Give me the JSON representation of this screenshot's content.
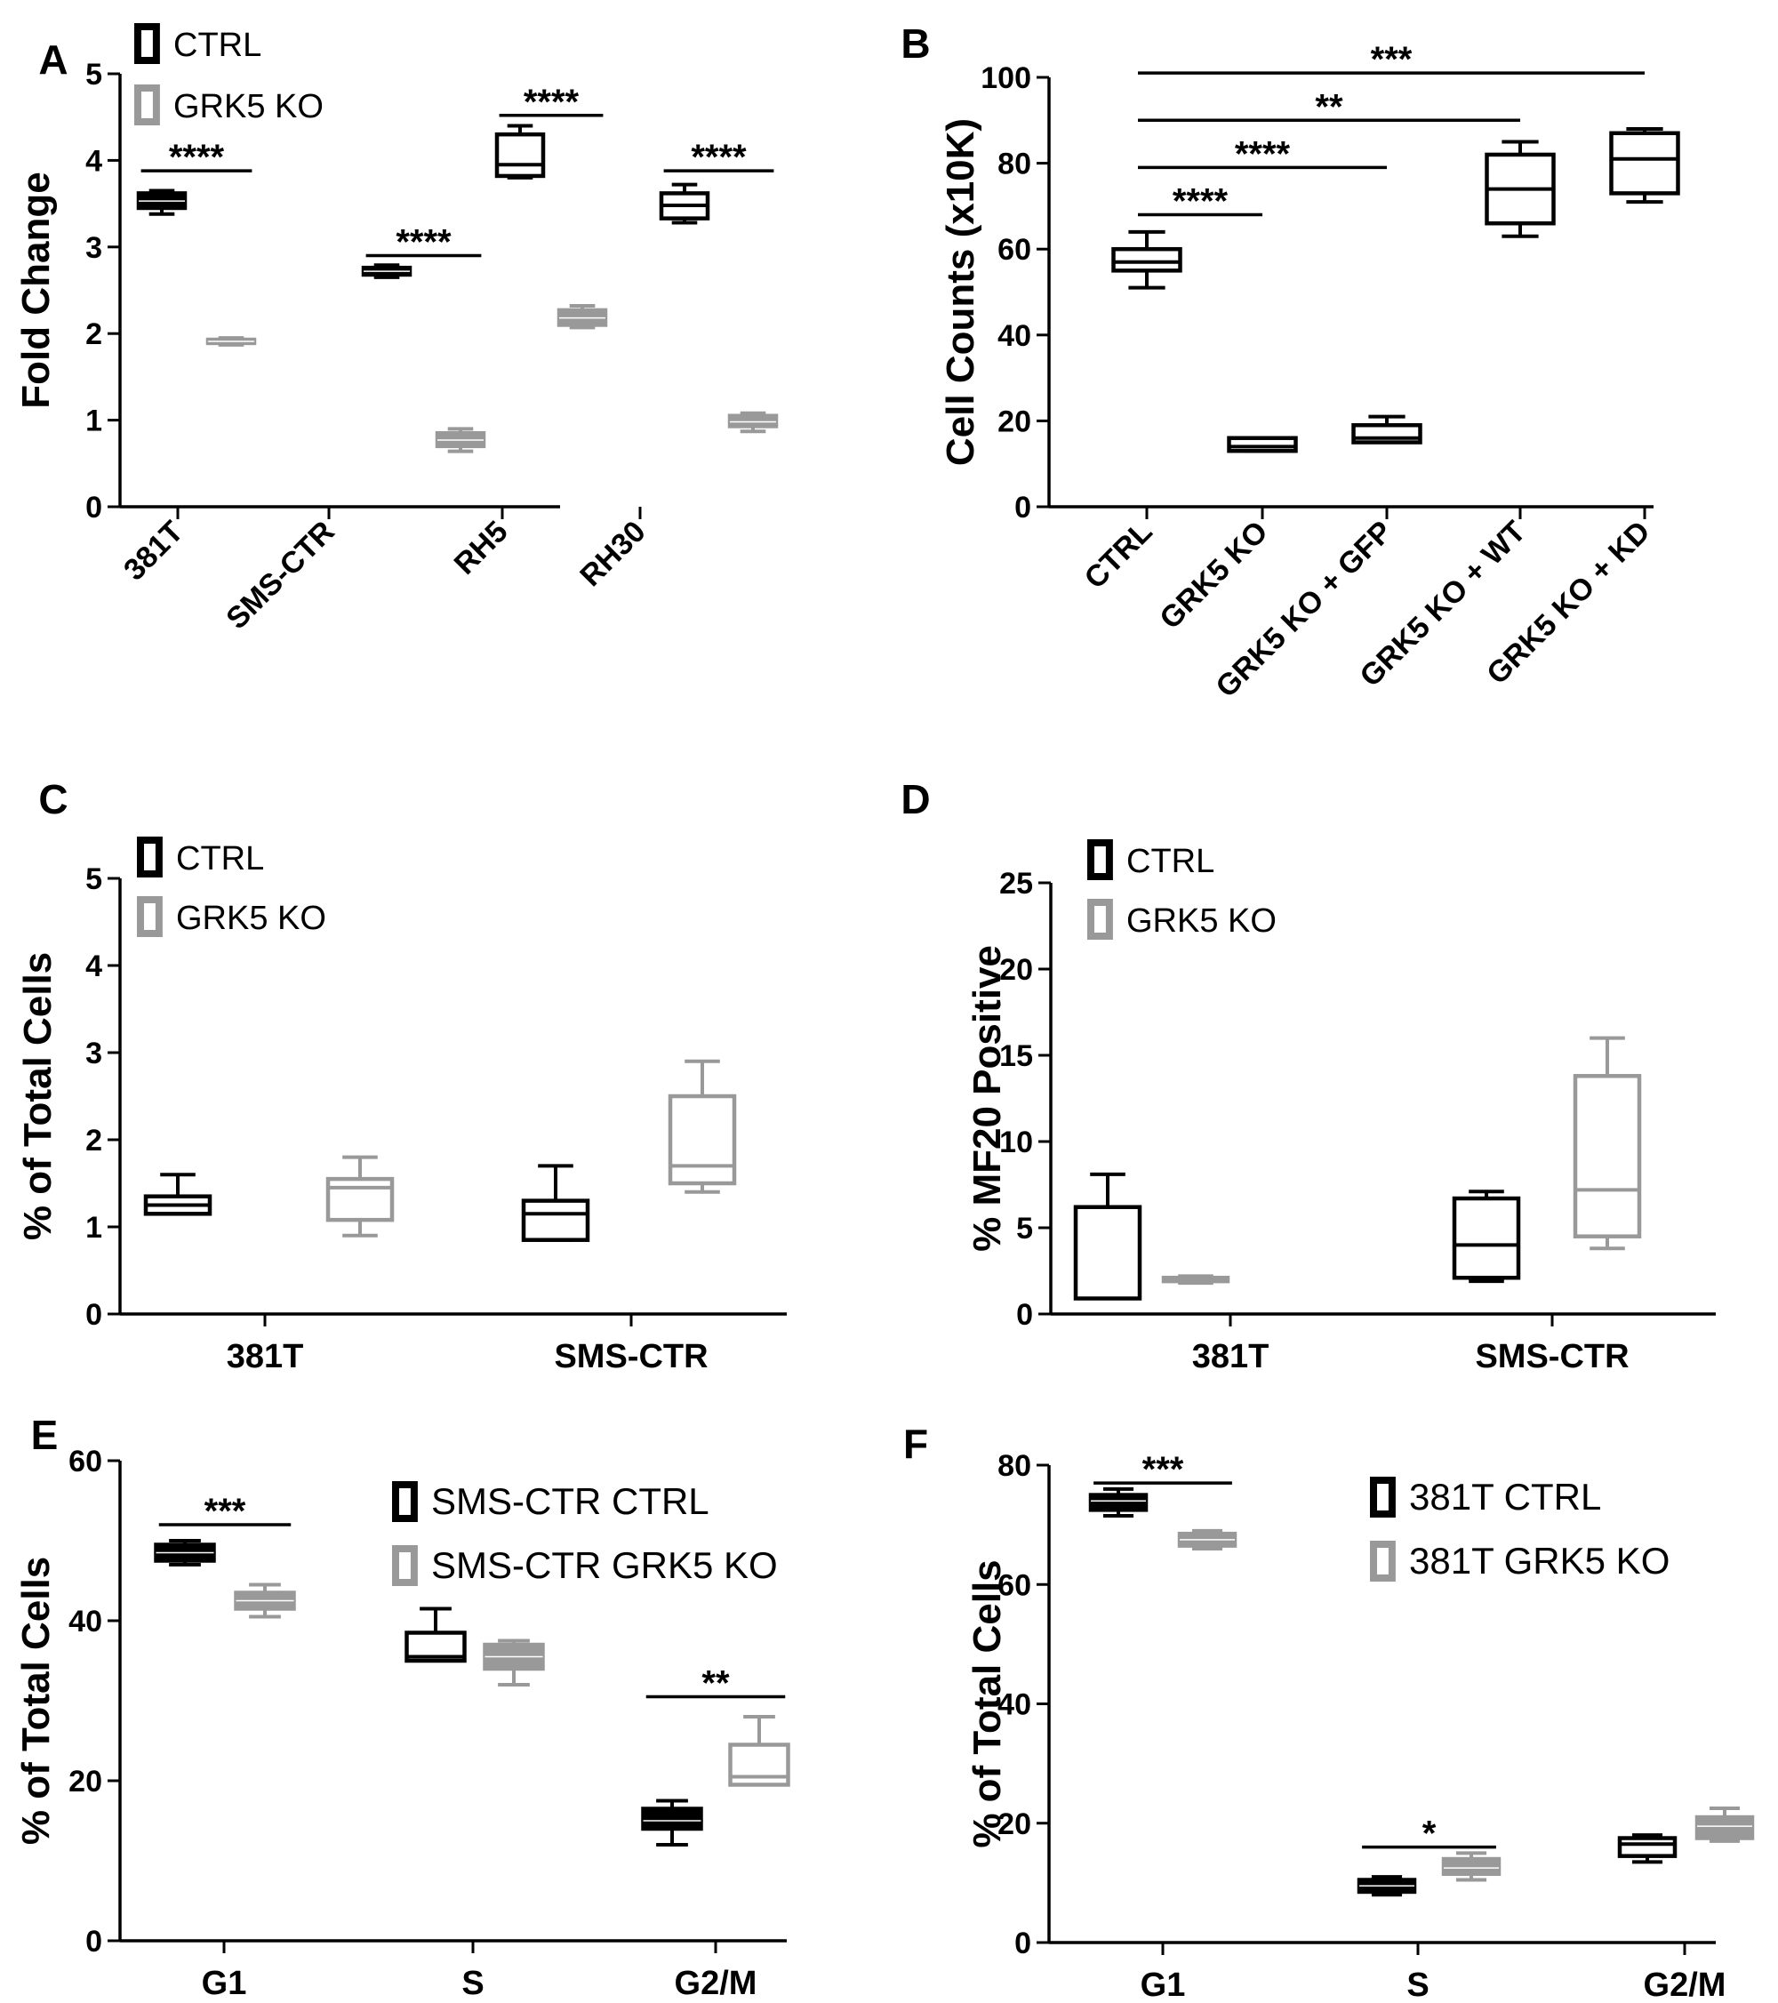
{
  "colors": {
    "ctrl": "#000000",
    "ko": "#999999",
    "axis": "#000000"
  },
  "chart_data": [
    {
      "panel": "A",
      "type": "box",
      "ylabel": "Fold Change",
      "ylim": [
        0,
        5
      ],
      "yticks": [
        0,
        1,
        2,
        3,
        4,
        5
      ],
      "categories": [
        "381T",
        "SMS-CTR",
        "RH5",
        "RH30"
      ],
      "legend": [
        {
          "label": "CTRL",
          "color": "ctrl"
        },
        {
          "label": "GRK5 KO",
          "color": "ko"
        }
      ],
      "boxes": [
        {
          "cat": 0,
          "group": "ctrl",
          "filled": true,
          "min": 3.38,
          "q1": 3.45,
          "median": 3.53,
          "q3": 3.62,
          "max": 3.65
        },
        {
          "cat": 0,
          "group": "ko",
          "filled": true,
          "min": 1.87,
          "q1": 1.89,
          "median": 1.91,
          "q3": 1.93,
          "max": 1.95
        },
        {
          "cat": 1,
          "group": "ctrl",
          "filled": true,
          "min": 2.65,
          "q1": 2.68,
          "median": 2.72,
          "q3": 2.76,
          "max": 2.79
        },
        {
          "cat": 1,
          "group": "ko",
          "filled": true,
          "min": 0.64,
          "q1": 0.7,
          "median": 0.77,
          "q3": 0.85,
          "max": 0.9
        },
        {
          "cat": 2,
          "group": "ctrl",
          "filled": false,
          "min": 3.8,
          "q1": 3.82,
          "median": 3.95,
          "q3": 4.3,
          "max": 4.4
        },
        {
          "cat": 2,
          "group": "ko",
          "filled": true,
          "min": 2.07,
          "q1": 2.1,
          "median": 2.18,
          "q3": 2.27,
          "max": 2.32
        },
        {
          "cat": 3,
          "group": "ctrl",
          "filled": false,
          "min": 3.28,
          "q1": 3.33,
          "median": 3.48,
          "q3": 3.62,
          "max": 3.72
        },
        {
          "cat": 3,
          "group": "ko",
          "filled": true,
          "min": 0.87,
          "q1": 0.93,
          "median": 0.98,
          "q3": 1.05,
          "max": 1.08
        }
      ],
      "significance": [
        {
          "from": 0,
          "to": 1,
          "y": 3.88,
          "label": "****"
        },
        {
          "from": 2,
          "to": 3,
          "y": 2.9,
          "label": "****"
        },
        {
          "from": 4,
          "to": 5,
          "y": 4.52,
          "label": "****"
        },
        {
          "from": 6,
          "to": 7,
          "y": 3.88,
          "label": "****"
        }
      ]
    },
    {
      "panel": "B",
      "type": "box",
      "ylabel": "Cell Counts (x10K)",
      "ylim": [
        0,
        100
      ],
      "yticks": [
        0,
        20,
        40,
        60,
        80,
        100
      ],
      "categories": [
        "CTRL",
        "GRK5 KO",
        "GRK5 KO + GFP",
        "GRK5 KO + WT",
        "GRK5 KO + KD"
      ],
      "legend": [],
      "boxes": [
        {
          "cat": 0,
          "group": "ctrl",
          "filled": false,
          "min": 51,
          "q1": 55,
          "median": 57,
          "q3": 60,
          "max": 64
        },
        {
          "cat": 1,
          "group": "ctrl",
          "filled": false,
          "min": 13,
          "q1": 13,
          "median": 14,
          "q3": 16,
          "max": 16
        },
        {
          "cat": 2,
          "group": "ctrl",
          "filled": false,
          "min": 15,
          "q1": 15,
          "median": 16,
          "q3": 19,
          "max": 21
        },
        {
          "cat": 3,
          "group": "ctrl",
          "filled": false,
          "min": 63,
          "q1": 66,
          "median": 74,
          "q3": 82,
          "max": 85
        },
        {
          "cat": 4,
          "group": "ctrl",
          "filled": false,
          "min": 71,
          "q1": 73,
          "median": 81,
          "q3": 87,
          "max": 88
        }
      ],
      "significance": [
        {
          "from": 0,
          "to": 4,
          "y": 101,
          "label": "***"
        },
        {
          "from": 0,
          "to": 3,
          "y": 90,
          "label": "**"
        },
        {
          "from": 0,
          "to": 2,
          "y": 79,
          "label": "****"
        },
        {
          "from": 0,
          "to": 1,
          "y": 68,
          "label": "****"
        }
      ]
    },
    {
      "panel": "C",
      "type": "box",
      "ylabel": "% of Total Cells",
      "ylim": [
        0,
        5
      ],
      "yticks": [
        0,
        1,
        2,
        3,
        4,
        5
      ],
      "categories": [
        "381T",
        "SMS-CTR"
      ],
      "legend": [
        {
          "label": "CTRL",
          "color": "ctrl"
        },
        {
          "label": "GRK5 KO",
          "color": "ko"
        }
      ],
      "boxes": [
        {
          "cat": 0,
          "group": "ctrl",
          "filled": false,
          "min": 1.15,
          "q1": 1.15,
          "median": 1.25,
          "q3": 1.35,
          "max": 1.6
        },
        {
          "cat": 0,
          "group": "ko",
          "filled": false,
          "min": 0.9,
          "q1": 1.08,
          "median": 1.45,
          "q3": 1.55,
          "max": 1.8
        },
        {
          "cat": 1,
          "group": "ctrl",
          "filled": false,
          "min": 0.85,
          "q1": 0.85,
          "median": 1.15,
          "q3": 1.3,
          "max": 1.7
        },
        {
          "cat": 1,
          "group": "ko",
          "filled": false,
          "min": 1.4,
          "q1": 1.5,
          "median": 1.7,
          "q3": 2.5,
          "max": 2.9
        }
      ],
      "significance": []
    },
    {
      "panel": "D",
      "type": "box",
      "ylabel": "% MF20 Positive",
      "ylim": [
        0,
        25
      ],
      "yticks": [
        0,
        5,
        10,
        15,
        20,
        25
      ],
      "categories": [
        "381T",
        "SMS-CTR"
      ],
      "legend": [
        {
          "label": "CTRL",
          "color": "ctrl"
        },
        {
          "label": "GRK5 KO",
          "color": "ko"
        }
      ],
      "boxes": [
        {
          "cat": 0,
          "group": "ctrl",
          "filled": false,
          "min": 0.9,
          "q1": 0.9,
          "median": 0.9,
          "q3": 6.2,
          "max": 8.1
        },
        {
          "cat": 0,
          "group": "ko",
          "filled": false,
          "min": 1.8,
          "q1": 1.9,
          "median": 2.0,
          "q3": 2.1,
          "max": 2.2
        },
        {
          "cat": 1,
          "group": "ctrl",
          "filled": false,
          "min": 1.9,
          "q1": 2.1,
          "median": 4.0,
          "q3": 6.7,
          "max": 7.1
        },
        {
          "cat": 1,
          "group": "ko",
          "filled": false,
          "min": 3.8,
          "q1": 4.5,
          "median": 7.2,
          "q3": 13.8,
          "max": 16.0
        }
      ],
      "significance": []
    },
    {
      "panel": "E",
      "type": "box",
      "ylabel": "% of Total Cells",
      "ylim": [
        0,
        60
      ],
      "yticks": [
        0,
        20,
        40,
        60
      ],
      "categories": [
        "G1",
        "S",
        "G2/M"
      ],
      "legend": [
        {
          "label": "SMS-CTR CTRL",
          "color": "ctrl"
        },
        {
          "label": "SMS-CTR GRK5 KO",
          "color": "ko"
        }
      ],
      "boxes": [
        {
          "cat": 0,
          "group": "ctrl",
          "filled": true,
          "min": 47.0,
          "q1": 47.5,
          "median": 48.5,
          "q3": 49.5,
          "max": 50.0
        },
        {
          "cat": 0,
          "group": "ko",
          "filled": true,
          "min": 40.5,
          "q1": 41.5,
          "median": 42.5,
          "q3": 43.5,
          "max": 44.5
        },
        {
          "cat": 1,
          "group": "ctrl",
          "filled": false,
          "min": 35.0,
          "q1": 35.0,
          "median": 35.5,
          "q3": 38.5,
          "max": 41.5
        },
        {
          "cat": 1,
          "group": "ko",
          "filled": true,
          "min": 32.0,
          "q1": 34.0,
          "median": 35.5,
          "q3": 37.0,
          "max": 37.5
        },
        {
          "cat": 2,
          "group": "ctrl",
          "filled": true,
          "min": 12.0,
          "q1": 14.0,
          "median": 15.0,
          "q3": 16.5,
          "max": 17.5
        },
        {
          "cat": 2,
          "group": "ko",
          "filled": false,
          "min": 19.5,
          "q1": 19.5,
          "median": 20.5,
          "q3": 24.5,
          "max": 28.0
        }
      ],
      "significance": [
        {
          "from": 0,
          "to": 1,
          "y": 52.0,
          "label": "***"
        },
        {
          "from": 4,
          "to": 5,
          "y": 30.5,
          "label": "**"
        }
      ]
    },
    {
      "panel": "F",
      "type": "box",
      "ylabel": "% of Total Cells",
      "ylim": [
        0,
        80
      ],
      "yticks": [
        0,
        20,
        40,
        60,
        80
      ],
      "categories": [
        "G1",
        "S",
        "G2/M"
      ],
      "legend": [
        {
          "label": "381T CTRL",
          "color": "ctrl"
        },
        {
          "label": "381T GRK5 KO",
          "color": "ko"
        }
      ],
      "boxes": [
        {
          "cat": 0,
          "group": "ctrl",
          "filled": true,
          "min": 71.5,
          "q1": 72.5,
          "median": 74.0,
          "q3": 75.0,
          "max": 76.0
        },
        {
          "cat": 0,
          "group": "ko",
          "filled": true,
          "min": 66.0,
          "q1": 66.5,
          "median": 67.5,
          "q3": 68.5,
          "max": 69.0
        },
        {
          "cat": 1,
          "group": "ctrl",
          "filled": true,
          "min": 8.0,
          "q1": 8.5,
          "median": 9.5,
          "q3": 10.5,
          "max": 11.0
        },
        {
          "cat": 1,
          "group": "ko",
          "filled": true,
          "min": 10.5,
          "q1": 11.5,
          "median": 12.5,
          "q3": 14.0,
          "max": 15.0
        },
        {
          "cat": 2,
          "group": "ctrl",
          "filled": false,
          "min": 13.5,
          "q1": 14.5,
          "median": 16.5,
          "q3": 17.5,
          "max": 18.0
        },
        {
          "cat": 2,
          "group": "ko",
          "filled": true,
          "min": 17.0,
          "q1": 17.5,
          "median": 19.5,
          "q3": 21.0,
          "max": 22.5
        }
      ],
      "significance": [
        {
          "from": 0,
          "to": 1,
          "y": 77.0,
          "label": "***"
        },
        {
          "from": 2,
          "to": 3,
          "y": 16.0,
          "label": "*"
        }
      ]
    }
  ]
}
